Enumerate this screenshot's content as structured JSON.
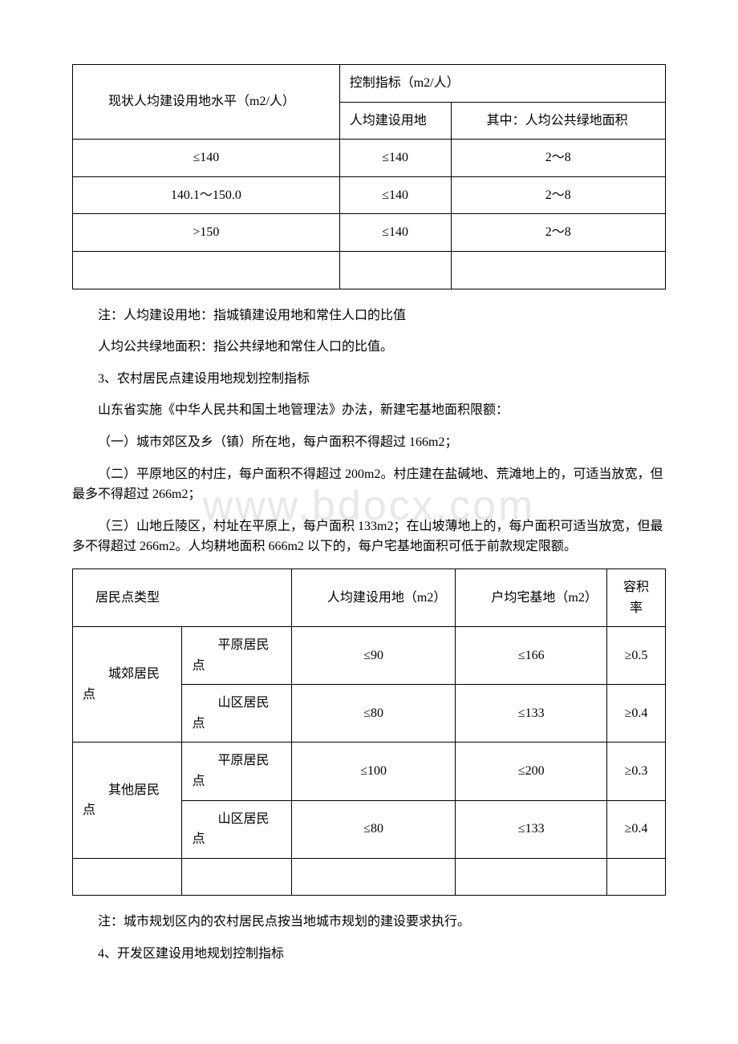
{
  "watermark": "www.bdocx.com",
  "table1": {
    "header_row1_col1": "　　现状人均建设用地水平（m2/人）",
    "header_row1_col2": "控制指标（m2/人）",
    "header_row2_col2": "人均建设用地",
    "header_row2_col3": "　　其中：人均公共绿地面积",
    "rows": [
      {
        "c1": "≤140",
        "c2": "≤140",
        "c3": "2～8"
      },
      {
        "c1": "140.1～150.0",
        "c2": "≤140",
        "c3": "2～8"
      },
      {
        "c1": ">150",
        "c2": "≤140",
        "c3": "2～8"
      }
    ]
  },
  "paragraphs1": [
    "注：人均建设用地：指城镇建设用地和常住人口的比值",
    "人均公共绿地面积：指公共绿地和常住人口的比值。",
    "3、农村居民点建设用地规划控制指标",
    "山东省实施《中华人民共和国土地管理法》办法，新建宅基地面积限额：",
    "（一）城市郊区及乡（镇）所在地，每户面积不得超过 166m2；",
    "（二）平原地区的村庄，每户面积不得超过 200m2。村庄建在盐碱地、荒滩地上的，可适当放宽，但最多不得超过 266m2；",
    "（三）山地丘陵区，村址在平原上，每户面积 133m2；在山坡薄地上的，每户面积可适当放宽，但最多不得超过 266m2。人均耕地面积 666m2 以下的，每户宅基地面积可低于前款规定限额。"
  ],
  "table2": {
    "header": {
      "c1": "居民点类型",
      "c2": "　　人均建设用地（m2）",
      "c3": "　　户均宅基地（m2）",
      "c4": "容积率"
    },
    "group1_label": "　　城郊居民点",
    "group2_label": "　　其他居民点",
    "sub_plain": "　　平原居民点",
    "sub_mountain": "　　山区居民点",
    "rows": [
      {
        "c2": "≤90",
        "c3": "≤166",
        "c4": "≥0.5"
      },
      {
        "c2": "≤80",
        "c3": "≤133",
        "c4": "≥0.4"
      },
      {
        "c2": "≤100",
        "c3": "≤200",
        "c4": "≥0.3"
      },
      {
        "c2": "≤80",
        "c3": "≤133",
        "c4": "≥0.4"
      }
    ]
  },
  "paragraphs2": [
    "注：城市规划区内的农村居民点按当地城市规划的建设要求执行。",
    "4、开发区建设用地规划控制指标"
  ],
  "colors": {
    "text": "#000000",
    "background": "#ffffff",
    "border": "#000000",
    "watermark": "#e8e8e8"
  },
  "typography": {
    "body_fontsize": 16,
    "watermark_fontsize": 52,
    "font_family": "SimSun"
  }
}
